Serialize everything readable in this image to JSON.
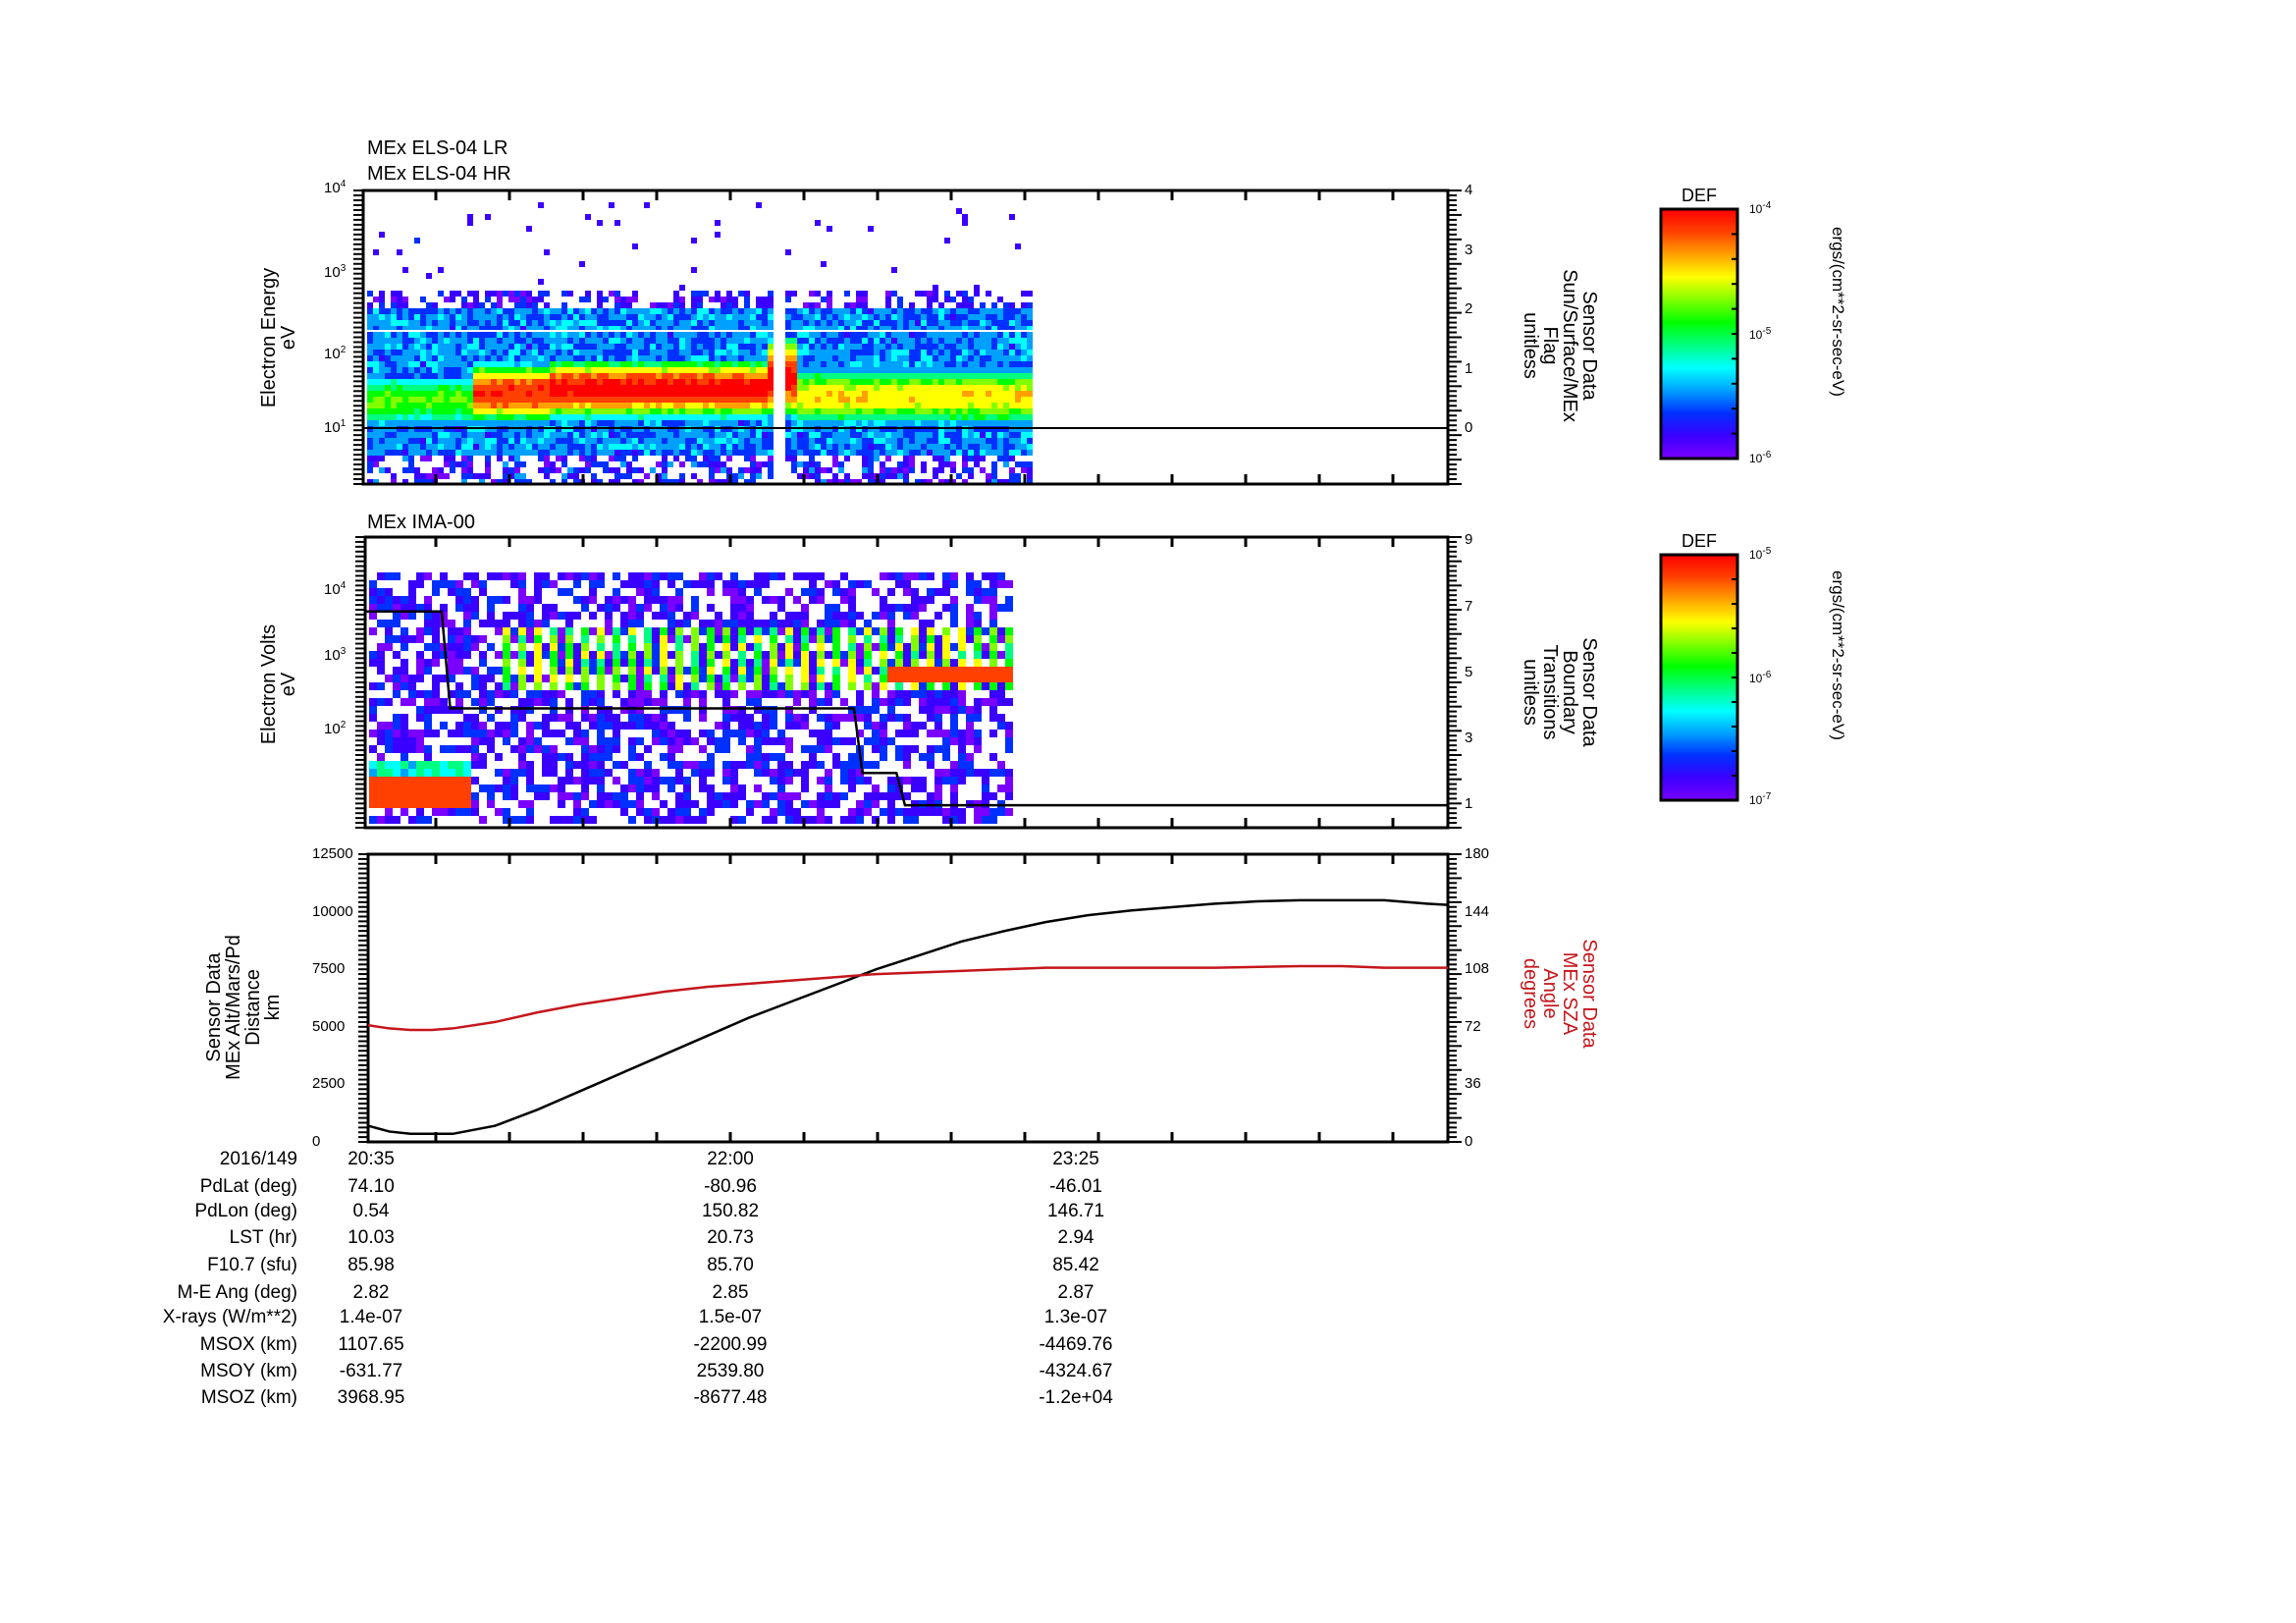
{
  "chart_data": [
    {
      "type": "heatmap",
      "panel": "top",
      "title_lines": [
        "MEx ELS-04 LR",
        "MEx ELS-04 HR"
      ],
      "ylabel_left": [
        "Electron Energy",
        "eV"
      ],
      "yscale": "log",
      "ylim": [
        1.5,
        10000
      ],
      "yticks_left": [
        "10^1",
        "10^2",
        "10^3",
        "10^4"
      ],
      "ylabel_right": [
        "Sensor Data",
        "Sun/Surface/MEx",
        "Flag",
        "unitless"
      ],
      "yticks_right": [
        0,
        1,
        2,
        3,
        4
      ],
      "overlay_line": {
        "name": "Sun/Surface/MEx Flag",
        "value": 0,
        "color": "#000000"
      },
      "data_extent_time": [
        "20:35",
        "~22:45"
      ],
      "features": [
        {
          "time": "20:35-20:52",
          "energy_eV": "8-40",
          "level": "green/cyan"
        },
        {
          "time": "20:52-21:55",
          "energy_eV": "15-60",
          "level": "red (peak)"
        },
        {
          "time": "21:55-22:05",
          "energy_eV": "10-150",
          "level": "red spikes"
        },
        {
          "time": "22:07-22:45",
          "energy_eV": "10-60",
          "level": "yellow/green"
        }
      ],
      "colorbar": {
        "label": "DEF",
        "unit": "ergs/(cm**2-sr-sec-eV)",
        "min": "10^-6",
        "mid": "10^-5",
        "max": "10^-4"
      }
    },
    {
      "type": "heatmap",
      "panel": "middle",
      "title": "MEx IMA-00",
      "ylabel_left": [
        "Electron Volts",
        "eV"
      ],
      "yscale": "log",
      "ylim": [
        5,
        40000
      ],
      "yticks_left": [
        "10^2",
        "10^3",
        "10^4"
      ],
      "ylabel_right": [
        "Sensor Data",
        "Boundary",
        "Transitions",
        "unitless"
      ],
      "yticks_right": [
        1,
        3,
        5,
        7,
        9
      ],
      "overlay_line": {
        "name": "Boundary Transitions",
        "color": "#000000",
        "points": [
          [
            "20:35",
            7
          ],
          [
            "20:53",
            7
          ],
          [
            "20:55",
            4
          ],
          [
            "22:30",
            4
          ],
          [
            "22:32",
            2
          ],
          [
            "22:40",
            2
          ],
          [
            "22:42",
            1
          ],
          [
            "24:59",
            1
          ]
        ]
      },
      "features": [
        {
          "time": "20:35-20:53",
          "energy_eV": "10-20",
          "level": "red band"
        },
        {
          "time": "20:55-22:40",
          "energy_eV": "300-2000",
          "level": "green/yellow striped"
        }
      ],
      "colorbar": {
        "label": "DEF",
        "unit": "ergs/(cm**2-sr-sec-eV)",
        "min": "10^-7",
        "mid": "10^-6",
        "max": "10^-5"
      }
    },
    {
      "type": "line",
      "panel": "bottom",
      "ylabel_left": [
        "Sensor Data",
        "MEx Alt/Mars/Pd",
        "Distance",
        "km"
      ],
      "ylim_left": [
        0,
        12500
      ],
      "yticks_left": [
        0,
        2500,
        5000,
        7500,
        10000,
        12500
      ],
      "ylabel_right": [
        "Sensor Data",
        "MEx SZA",
        "Angle",
        "degrees"
      ],
      "ylim_right": [
        0,
        180
      ],
      "yticks_right": [
        0,
        36,
        72,
        108,
        144,
        180
      ],
      "series": [
        {
          "name": "MEx Alt/Mars/Pd Distance (km)",
          "color": "#000000",
          "axis": "left",
          "x_min": [
            0,
            5,
            10,
            15,
            20,
            30,
            40,
            50,
            60,
            70,
            80,
            90,
            100,
            110,
            120,
            130,
            140,
            150,
            160,
            170,
            180,
            190,
            200,
            210,
            220,
            230,
            240,
            250,
            255
          ],
          "y": [
            700,
            450,
            350,
            350,
            350,
            700,
            1400,
            2200,
            3000,
            3800,
            4600,
            5400,
            6100,
            6800,
            7500,
            8100,
            8700,
            9150,
            9550,
            9850,
            10050,
            10200,
            10350,
            10450,
            10500,
            10500,
            10500,
            10350,
            10300
          ]
        },
        {
          "name": "MEx SZA Angle (degrees)",
          "color": "#c4161c",
          "axis": "right",
          "x_min": [
            0,
            5,
            10,
            15,
            20,
            30,
            40,
            50,
            60,
            70,
            80,
            90,
            100,
            110,
            120,
            130,
            140,
            150,
            160,
            180,
            200,
            220,
            230,
            240,
            250,
            255
          ],
          "y": [
            73,
            71,
            70,
            70,
            71,
            75,
            81,
            86,
            90,
            94,
            97,
            99,
            101,
            103,
            105,
            106,
            107,
            108,
            109,
            109,
            109,
            110,
            110,
            109,
            109,
            109
          ]
        }
      ]
    }
  ],
  "time_axis": {
    "major_labels": [
      "20:35",
      "22:00",
      "23:25"
    ],
    "date_label": "2016/149"
  },
  "info_table": {
    "rows": [
      {
        "label": "PdLat (deg)",
        "values": [
          "74.10",
          "-80.96",
          "-46.01"
        ]
      },
      {
        "label": "PdLon (deg)",
        "values": [
          "0.54",
          "150.82",
          "146.71"
        ]
      },
      {
        "label": "LST (hr)",
        "values": [
          "10.03",
          "20.73",
          "2.94"
        ]
      },
      {
        "label": "F10.7 (sfu)",
        "values": [
          "85.98",
          "85.70",
          "85.42"
        ]
      },
      {
        "label": "M-E Ang (deg)",
        "values": [
          "2.82",
          "2.85",
          "2.87"
        ]
      },
      {
        "label": "X-rays (W/m**2)",
        "values": [
          "1.4e-07",
          "1.5e-07",
          "1.3e-07"
        ]
      },
      {
        "label": "MSOX (km)",
        "values": [
          "1107.65",
          "-2200.99",
          "-4469.76"
        ]
      },
      {
        "label": "MSOY (km)",
        "values": [
          "-631.77",
          "2539.80",
          "-4324.67"
        ]
      },
      {
        "label": "MSOZ (km)",
        "values": [
          "3968.95",
          "-8677.48",
          "-1.2e+04"
        ]
      }
    ]
  },
  "labels": {
    "p1_title1": "MEx ELS-04 LR",
    "p1_title2": "MEx ELS-04 HR",
    "p1_ylabel1": "Electron Energy",
    "p1_ylabel2": "eV",
    "p1_rlabel": [
      "Sensor Data",
      "Sun/Surface/MEx",
      "Flag",
      "unitless"
    ],
    "p2_title": "MEx IMA-00",
    "p2_ylabel1": "Electron Volts",
    "p2_ylabel2": "eV",
    "p2_rlabel": [
      "Sensor Data",
      "Boundary",
      "Transitions",
      "unitless"
    ],
    "p3_llabel": [
      "Sensor Data",
      "MEx Alt/Mars/Pd",
      "Distance",
      "km"
    ],
    "p3_rlabel": [
      "Sensor Data",
      "MEx SZA",
      "Angle",
      "degrees"
    ],
    "cb1_title": "DEF",
    "cb1_unit": "ergs/(cm**2-sr-sec-eV)",
    "cb2_title": "DEF",
    "cb2_unit": "ergs/(cm**2-sr-sec-eV)"
  },
  "colors": {
    "accent_red": "#c4161c",
    "axis": "#000000",
    "colormap": [
      "#7a00ff",
      "#3a00ff",
      "#0030ff",
      "#00a0ff",
      "#00ffff",
      "#00ff80",
      "#00ff00",
      "#80ff00",
      "#ffff00",
      "#ffa000",
      "#ff4000",
      "#ff0000"
    ]
  }
}
